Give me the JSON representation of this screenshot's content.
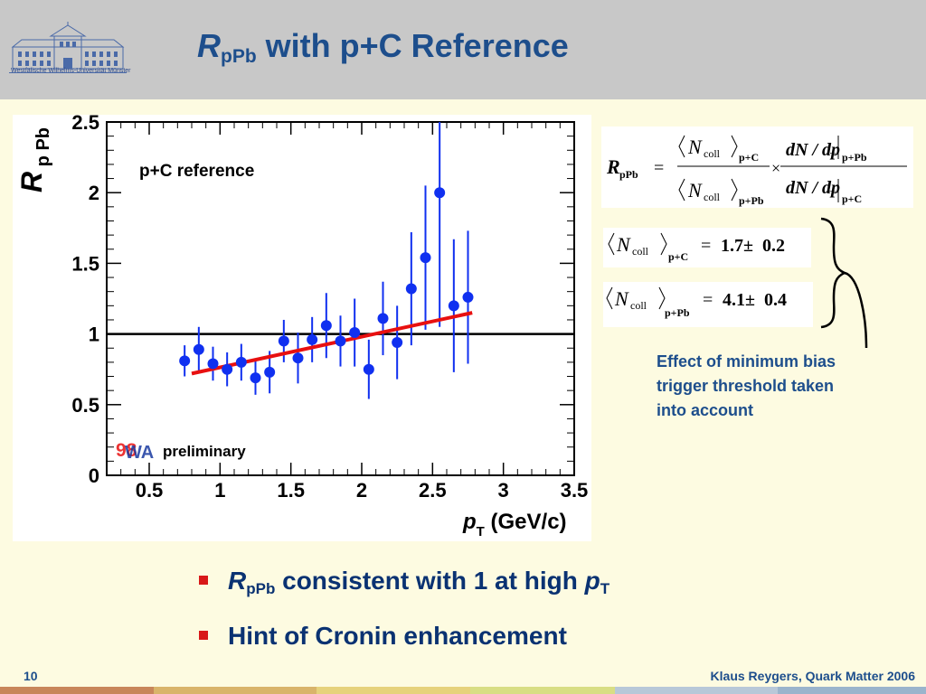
{
  "slide": {
    "title_main": "R",
    "title_sub": "pPb",
    "title_rest": " with p+C Reference",
    "university": "Westfälische Wilhelms-Universität Münster",
    "page_number": "10",
    "credit": "Klaus Reygers, Quark Matter 2006"
  },
  "formulas": {
    "main": {
      "lhs": "R",
      "lhs_sub": "pPb",
      "eq": "=",
      "num_N": "N",
      "num_coll": "coll",
      "num_sub": "p+C",
      "den_sub": "p+Pb",
      "times": "×",
      "dN": "dN / dp",
      "T": "T",
      "ratio_num_sub": "p+Pb",
      "ratio_den_sub": "p+C"
    },
    "pc": {
      "N": "N",
      "coll": "coll",
      "sub": "p+C",
      "eq": "=",
      "value": "1.7±  0.2"
    },
    "ppb": {
      "N": "N",
      "coll": "coll",
      "sub": "p+Pb",
      "eq": "=",
      "value": "4.1±  0.4"
    }
  },
  "note": "Effect of minimum bias\ntrigger threshold taken\ninto account",
  "bullets": [
    {
      "r": "R",
      "sub": "pPb",
      "text": " consistent with 1 at high ",
      "p": "p",
      "p_sub": "T"
    },
    {
      "text": "Hint of Cronin enhancement"
    }
  ],
  "chart_data": {
    "type": "scatter",
    "legend_label": "p+C reference",
    "preliminary": "preliminary",
    "logo_text": "98",
    "logo_letters": "WA",
    "xlabel_p": "p",
    "xlabel_sub": "T",
    "xlabel_unit": " (GeV/c)",
    "ylabel_r": "R",
    "ylabel_sub": "p Pb",
    "xlim": [
      0.2,
      3.5
    ],
    "ylim": [
      0,
      2.5
    ],
    "x_ticks": [
      "0.5",
      "1",
      "1.5",
      "2",
      "2.5",
      "3",
      "3.5"
    ],
    "x_tick_values": [
      0.5,
      1,
      1.5,
      2,
      2.5,
      3,
      3.5
    ],
    "y_ticks": [
      "0",
      "0.5",
      "1",
      "1.5",
      "2",
      "2.5"
    ],
    "y_tick_values": [
      0,
      0.5,
      1,
      1.5,
      2,
      2.5
    ],
    "reference_line_y": 1,
    "fit_line": {
      "x": [
        0.8,
        2.78
      ],
      "y": [
        0.72,
        1.15
      ],
      "color": "#e81010"
    },
    "marker_color": "#1030f0",
    "series": [
      {
        "x": [
          0.75,
          0.85,
          0.95,
          1.05,
          1.15,
          1.25,
          1.35,
          1.45,
          1.55,
          1.65,
          1.75,
          1.85,
          1.95,
          2.05,
          2.15,
          2.25,
          2.35,
          2.45,
          2.55,
          2.65,
          2.75
        ],
        "y": [
          0.81,
          0.89,
          0.79,
          0.75,
          0.8,
          0.69,
          0.73,
          0.95,
          0.83,
          0.96,
          1.06,
          0.95,
          1.01,
          0.75,
          1.11,
          0.94,
          1.32,
          1.54,
          2.0,
          1.2,
          1.26
        ],
        "err": [
          0.11,
          0.16,
          0.12,
          0.12,
          0.13,
          0.12,
          0.15,
          0.15,
          0.18,
          0.16,
          0.23,
          0.18,
          0.24,
          0.21,
          0.26,
          0.26,
          0.4,
          0.51,
          0.95,
          0.47,
          0.47
        ]
      }
    ],
    "grid": false
  }
}
